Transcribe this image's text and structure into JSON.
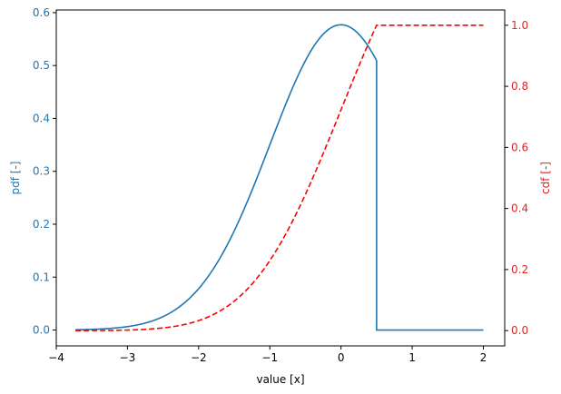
{
  "chart_data": {
    "type": "line",
    "title": "",
    "xlabel": "value [x]",
    "ylabel_left": "pdf [-]",
    "ylabel_right": "cdf [-]",
    "xlim": [
      -4.0,
      2.3
    ],
    "ylim_left": [
      -0.03,
      0.605
    ],
    "ylim_right": [
      -0.05,
      1.05
    ],
    "xticks": [
      -4,
      -3,
      -2,
      -1,
      0,
      1,
      2
    ],
    "xtick_labels": [
      "−4",
      "−3",
      "−2",
      "−1",
      "0",
      "1",
      "2"
    ],
    "yticks_left": [
      0.0,
      0.1,
      0.2,
      0.3,
      0.4,
      0.5,
      0.6
    ],
    "ytick_labels_left": [
      "0.0",
      "0.1",
      "0.2",
      "0.3",
      "0.4",
      "0.5",
      "0.6"
    ],
    "yticks_right": [
      0.0,
      0.2,
      0.4,
      0.6,
      0.8,
      1.0
    ],
    "ytick_labels_right": [
      "0.0",
      "0.2",
      "0.4",
      "0.6",
      "0.8",
      "1.0"
    ],
    "grid": false,
    "legend": null,
    "colors": {
      "pdf": "#1f77b4",
      "cdf": "#ff0000",
      "left_axis_text": "#1f77b4",
      "right_axis_text": "#d62728"
    },
    "series": [
      {
        "name": "pdf",
        "axis": "left",
        "style": "solid",
        "x": [
          -3.73,
          -3.5,
          -3.0,
          -2.5,
          -2.0,
          -1.5,
          -1.25,
          -1.0,
          -0.75,
          -0.5,
          -0.25,
          0.0,
          0.25,
          0.5,
          0.5,
          1.0,
          1.5,
          2.0
        ],
        "values": [
          0.0006,
          0.0013,
          0.0064,
          0.0253,
          0.0781,
          0.1874,
          0.2641,
          0.3499,
          0.4375,
          0.5104,
          0.5592,
          0.5769,
          0.5592,
          0.5092,
          0.0,
          0.0,
          0.0,
          0.0
        ]
      },
      {
        "name": "cdf",
        "axis": "right",
        "style": "dashed",
        "x": [
          -3.73,
          -3.5,
          -3.0,
          -2.5,
          -2.0,
          -1.5,
          -1.25,
          -1.0,
          -0.75,
          -0.5,
          -0.25,
          0.0,
          0.25,
          0.5,
          1.0,
          1.5,
          2.0
        ],
        "values": [
          0.0,
          0.0003,
          0.0017,
          0.0087,
          0.0325,
          0.0959,
          0.152,
          0.2291,
          0.327,
          0.4455,
          0.5772,
          0.7231,
          0.869,
          1.0,
          1.0,
          1.0,
          1.0
        ]
      }
    ]
  }
}
